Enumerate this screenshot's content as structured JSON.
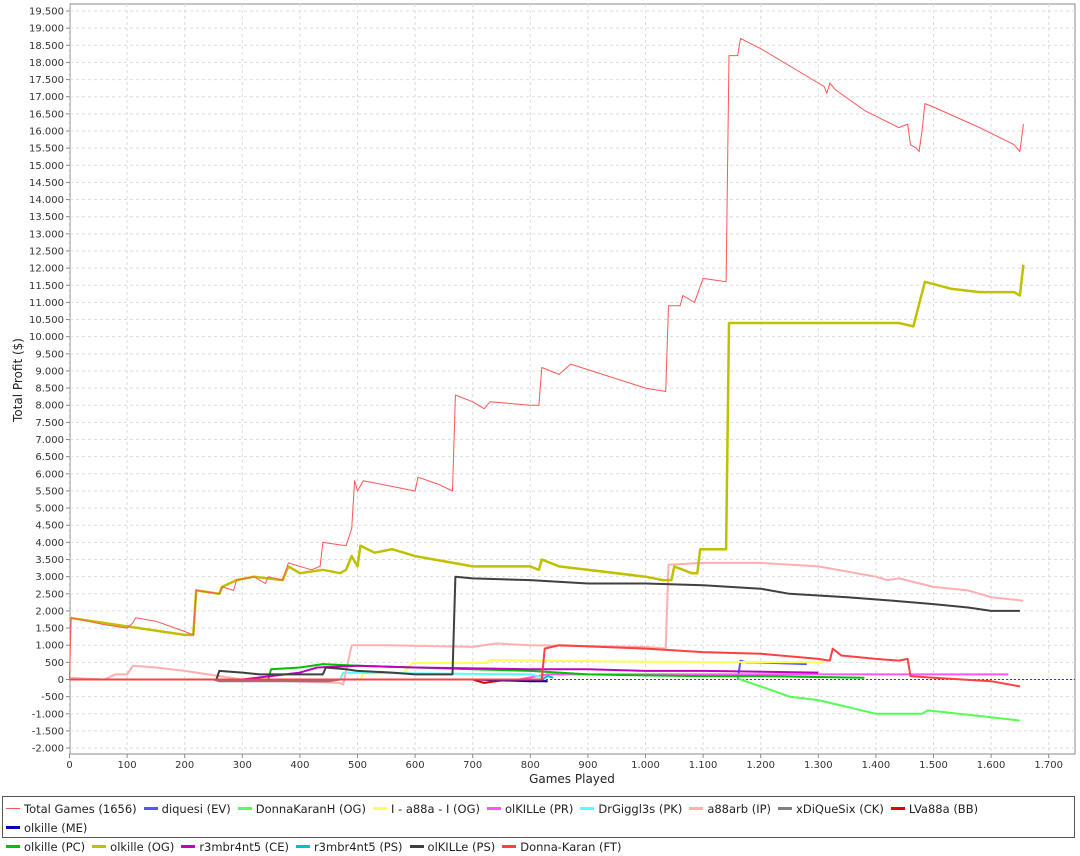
{
  "chart_data": {
    "type": "line",
    "title": "",
    "xlabel": "Games Played",
    "ylabel": "Total Profit ($)",
    "xlim": [
      0,
      1750
    ],
    "ylim": [
      -2150,
      19750
    ],
    "x_ticks": [
      0,
      100,
      200,
      300,
      400,
      500,
      600,
      700,
      800,
      900,
      1000,
      1100,
      1200,
      1300,
      1400,
      1500,
      1600,
      1700
    ],
    "y_tick_start": -2000,
    "y_tick_end": 19500,
    "y_tick_step": 500,
    "grid": true,
    "legend_position": "bottom",
    "series": [
      {
        "name": "Total Games (1656)",
        "color": "#ff5555",
        "width": 1,
        "points": [
          [
            0,
            0
          ],
          [
            3,
            1800
          ],
          [
            60,
            1600
          ],
          [
            100,
            1500
          ],
          [
            110,
            1650
          ],
          [
            115,
            1800
          ],
          [
            150,
            1700
          ],
          [
            200,
            1400
          ],
          [
            215,
            1300
          ],
          [
            220,
            2600
          ],
          [
            260,
            2500
          ],
          [
            265,
            2700
          ],
          [
            285,
            2600
          ],
          [
            290,
            2900
          ],
          [
            320,
            3000
          ],
          [
            340,
            2800
          ],
          [
            345,
            3000
          ],
          [
            370,
            2900
          ],
          [
            380,
            3400
          ],
          [
            420,
            3200
          ],
          [
            435,
            3300
          ],
          [
            440,
            4000
          ],
          [
            480,
            3900
          ],
          [
            490,
            4400
          ],
          [
            495,
            5800
          ],
          [
            500,
            5500
          ],
          [
            510,
            5800
          ],
          [
            600,
            5500
          ],
          [
            605,
            5900
          ],
          [
            640,
            5700
          ],
          [
            665,
            5500
          ],
          [
            670,
            8300
          ],
          [
            700,
            8100
          ],
          [
            720,
            7900
          ],
          [
            730,
            8100
          ],
          [
            800,
            8000
          ],
          [
            815,
            8000
          ],
          [
            820,
            9100
          ],
          [
            850,
            8900
          ],
          [
            870,
            9200
          ],
          [
            1000,
            8500
          ],
          [
            1035,
            8400
          ],
          [
            1040,
            10900
          ],
          [
            1060,
            10900
          ],
          [
            1065,
            11200
          ],
          [
            1085,
            11000
          ],
          [
            1100,
            11700
          ],
          [
            1140,
            11600
          ],
          [
            1145,
            18200
          ],
          [
            1160,
            18200
          ],
          [
            1165,
            18700
          ],
          [
            1200,
            18400
          ],
          [
            1300,
            17400
          ],
          [
            1310,
            17300
          ],
          [
            1315,
            17100
          ],
          [
            1320,
            17400
          ],
          [
            1330,
            17200
          ],
          [
            1380,
            16600
          ],
          [
            1440,
            16100
          ],
          [
            1455,
            16200
          ],
          [
            1460,
            15600
          ],
          [
            1470,
            15500
          ],
          [
            1475,
            15400
          ],
          [
            1480,
            16000
          ],
          [
            1485,
            16800
          ],
          [
            1500,
            16700
          ],
          [
            1580,
            16100
          ],
          [
            1640,
            15600
          ],
          [
            1650,
            15400
          ],
          [
            1656,
            16200
          ]
        ]
      },
      {
        "name": "diquesi (EV)",
        "color": "#5555ff",
        "width": 2,
        "points": [
          [
            1160,
            0
          ],
          [
            1165,
            550
          ],
          [
            1175,
            500
          ],
          [
            1190,
            500
          ],
          [
            1280,
            450
          ]
        ]
      },
      {
        "name": "DonnaKaranH (OG)",
        "color": "#55ff55",
        "width": 2,
        "points": [
          [
            1160,
            50
          ],
          [
            1165,
            0
          ],
          [
            1200,
            -200
          ],
          [
            1250,
            -500
          ],
          [
            1300,
            -600
          ],
          [
            1350,
            -800
          ],
          [
            1400,
            -1000
          ],
          [
            1480,
            -1000
          ],
          [
            1490,
            -900
          ],
          [
            1600,
            -1100
          ],
          [
            1650,
            -1200
          ]
        ]
      },
      {
        "name": "I - a88a - I (OG)",
        "color": "#ffff55",
        "width": 2,
        "points": [
          [
            0,
            0
          ],
          [
            505,
            0
          ],
          [
            510,
            180
          ],
          [
            580,
            200
          ],
          [
            595,
            480
          ],
          [
            725,
            480
          ],
          [
            730,
            570
          ],
          [
            1000,
            520
          ],
          [
            1310,
            500
          ]
        ]
      },
      {
        "name": "olKILLe (PR)",
        "color": "#ff55ff",
        "width": 2,
        "points": [
          [
            0,
            0
          ],
          [
            780,
            0
          ],
          [
            830,
            150
          ],
          [
            1630,
            150
          ]
        ]
      },
      {
        "name": "DrGiggl3s (PK)",
        "color": "#55ffff",
        "width": 2,
        "points": [
          [
            420,
            0
          ],
          [
            470,
            0
          ],
          [
            475,
            200
          ],
          [
            800,
            150
          ],
          [
            825,
            50
          ]
        ]
      },
      {
        "name": "a88arb (IP)",
        "color": "#ffafaf",
        "width": 2,
        "points": [
          [
            0,
            50
          ],
          [
            60,
            0
          ],
          [
            80,
            150
          ],
          [
            100,
            150
          ],
          [
            110,
            400
          ],
          [
            150,
            350
          ],
          [
            200,
            250
          ],
          [
            300,
            0
          ],
          [
            320,
            0
          ],
          [
            380,
            -50
          ],
          [
            470,
            -100
          ],
          [
            475,
            -150
          ],
          [
            490,
            1000
          ],
          [
            550,
            1000
          ],
          [
            700,
            950
          ],
          [
            740,
            1050
          ],
          [
            800,
            1000
          ],
          [
            1000,
            950
          ],
          [
            1035,
            900
          ],
          [
            1040,
            3350
          ],
          [
            1100,
            3400
          ],
          [
            1200,
            3400
          ],
          [
            1300,
            3300
          ],
          [
            1400,
            3000
          ],
          [
            1420,
            2900
          ],
          [
            1440,
            2950
          ],
          [
            1500,
            2700
          ],
          [
            1560,
            2600
          ],
          [
            1600,
            2400
          ],
          [
            1656,
            2300
          ]
        ]
      },
      {
        "name": "xDiQueSix (CK)",
        "color": "#808080",
        "width": 2,
        "points": [
          [
            0,
            0
          ],
          [
            250,
            0
          ],
          [
            260,
            -50
          ],
          [
            450,
            -50
          ],
          [
            470,
            0
          ]
        ]
      },
      {
        "name": "LVa88a (BB)",
        "color": "#e00000",
        "width": 2,
        "points": [
          [
            500,
            0
          ],
          [
            700,
            0
          ],
          [
            720,
            -100
          ],
          [
            760,
            0
          ],
          [
            830,
            -50
          ]
        ]
      },
      {
        "name": "olkille (ME)",
        "color": "#0000c0",
        "width": 2,
        "points": [
          [
            700,
            0
          ],
          [
            800,
            -50
          ],
          [
            830,
            -50
          ]
        ]
      },
      {
        "name": "olkille (PC)",
        "color": "#00c000",
        "width": 2,
        "points": [
          [
            320,
            0
          ],
          [
            345,
            0
          ],
          [
            350,
            300
          ],
          [
            400,
            350
          ],
          [
            440,
            450
          ],
          [
            500,
            400
          ],
          [
            600,
            350
          ],
          [
            700,
            300
          ],
          [
            800,
            250
          ],
          [
            900,
            150
          ],
          [
            1000,
            120
          ],
          [
            1100,
            100
          ],
          [
            1200,
            100
          ],
          [
            1380,
            50
          ]
        ]
      },
      {
        "name": "olkille (OG)",
        "color": "#c0c000",
        "width": 2.5,
        "points": [
          [
            0,
            1800
          ],
          [
            200,
            1300
          ],
          [
            215,
            1300
          ],
          [
            220,
            2600
          ],
          [
            260,
            2500
          ],
          [
            265,
            2700
          ],
          [
            290,
            2900
          ],
          [
            320,
            3000
          ],
          [
            370,
            2900
          ],
          [
            380,
            3300
          ],
          [
            400,
            3100
          ],
          [
            440,
            3200
          ],
          [
            470,
            3100
          ],
          [
            480,
            3200
          ],
          [
            490,
            3600
          ],
          [
            500,
            3300
          ],
          [
            505,
            3900
          ],
          [
            530,
            3700
          ],
          [
            560,
            3800
          ],
          [
            600,
            3600
          ],
          [
            700,
            3300
          ],
          [
            800,
            3300
          ],
          [
            815,
            3200
          ],
          [
            820,
            3500
          ],
          [
            850,
            3300
          ],
          [
            1000,
            3000
          ],
          [
            1030,
            2900
          ],
          [
            1045,
            2900
          ],
          [
            1050,
            3300
          ],
          [
            1080,
            3100
          ],
          [
            1090,
            3100
          ],
          [
            1095,
            3800
          ],
          [
            1140,
            3800
          ],
          [
            1145,
            10400
          ],
          [
            1200,
            10400
          ],
          [
            1440,
            10400
          ],
          [
            1465,
            10300
          ],
          [
            1485,
            11600
          ],
          [
            1530,
            11400
          ],
          [
            1580,
            11300
          ],
          [
            1640,
            11300
          ],
          [
            1650,
            11200
          ],
          [
            1656,
            12100
          ]
        ]
      },
      {
        "name": "r3mbr4nt5 (CE)",
        "color": "#c000c0",
        "width": 2,
        "points": [
          [
            0,
            0
          ],
          [
            300,
            0
          ],
          [
            400,
            200
          ],
          [
            430,
            350
          ],
          [
            500,
            400
          ],
          [
            600,
            350
          ],
          [
            800,
            300
          ],
          [
            900,
            300
          ],
          [
            1000,
            250
          ],
          [
            1100,
            250
          ],
          [
            1300,
            200
          ]
        ]
      },
      {
        "name": "r3mbr4nt5 (PS)",
        "color": "#00c0c0",
        "width": 2,
        "points": [
          [
            0,
            0
          ],
          [
            820,
            0
          ],
          [
            830,
            100
          ],
          [
            840,
            50
          ]
        ]
      },
      {
        "name": "olKILLe (PS)",
        "color": "#404040",
        "width": 2,
        "points": [
          [
            255,
            0
          ],
          [
            260,
            250
          ],
          [
            300,
            200
          ],
          [
            330,
            150
          ],
          [
            440,
            150
          ],
          [
            445,
            350
          ],
          [
            480,
            300
          ],
          [
            500,
            250
          ],
          [
            560,
            200
          ],
          [
            600,
            150
          ],
          [
            665,
            150
          ],
          [
            670,
            3000
          ],
          [
            700,
            2950
          ],
          [
            800,
            2900
          ],
          [
            900,
            2800
          ],
          [
            1000,
            2800
          ],
          [
            1100,
            2750
          ],
          [
            1200,
            2650
          ],
          [
            1250,
            2500
          ],
          [
            1350,
            2400
          ],
          [
            1430,
            2300
          ],
          [
            1500,
            2200
          ],
          [
            1560,
            2100
          ],
          [
            1600,
            2000
          ],
          [
            1650,
            2000
          ]
        ]
      },
      {
        "name": "Donna-Karan (FT)",
        "color": "#ff4040",
        "width": 2,
        "points": [
          [
            0,
            0
          ],
          [
            820,
            0
          ],
          [
            825,
            900
          ],
          [
            850,
            1000
          ],
          [
            1000,
            900
          ],
          [
            1100,
            800
          ],
          [
            1200,
            750
          ],
          [
            1300,
            600
          ],
          [
            1320,
            550
          ],
          [
            1325,
            900
          ],
          [
            1340,
            700
          ],
          [
            1400,
            600
          ],
          [
            1440,
            550
          ],
          [
            1455,
            600
          ],
          [
            1460,
            100
          ],
          [
            1500,
            50
          ],
          [
            1600,
            -50
          ],
          [
            1650,
            -200
          ]
        ]
      }
    ]
  }
}
